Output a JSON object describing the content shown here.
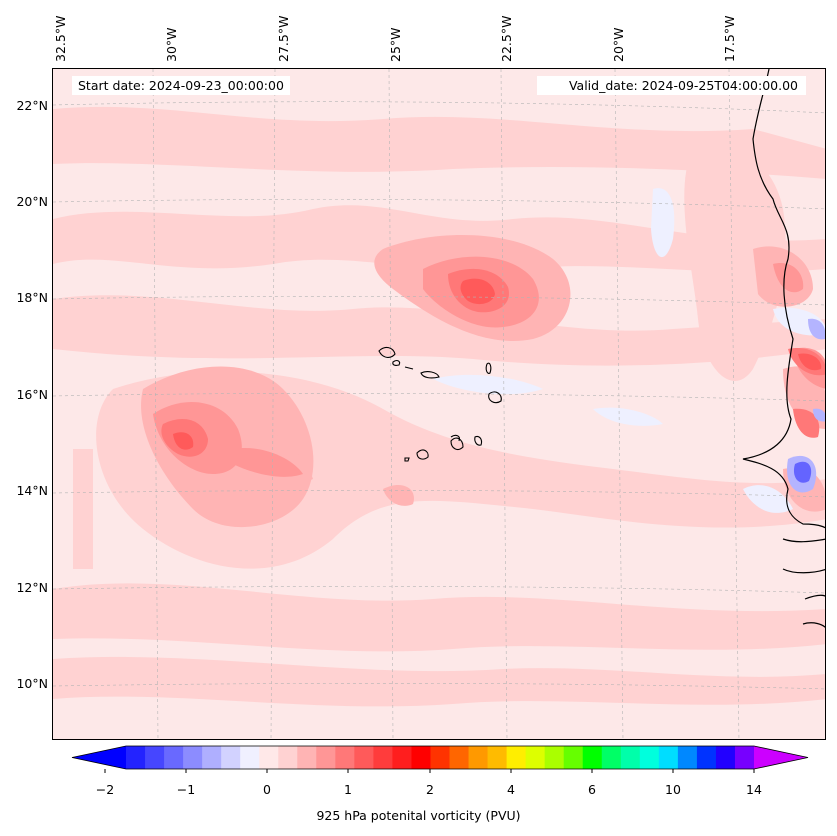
{
  "title": {
    "start": "Start date: 2024-09-23_00:00:00",
    "valid": "Valid_date: 2024-09-25T04:00:00.00"
  },
  "axes": {
    "longitudes": [
      "32.5°W",
      "30°W",
      "27.5°W",
      "25°W",
      "22.5°W",
      "20°W",
      "17.5°W"
    ],
    "latitudes": [
      "22°N",
      "20°N",
      "18°N",
      "16°N",
      "14°N",
      "12°N",
      "10°N"
    ]
  },
  "colorbar": {
    "label": "925 hPa potenital vorticity (PVU)",
    "ticks": [
      "−2",
      "−1",
      "0",
      "1",
      "2",
      "4",
      "6",
      "10",
      "14"
    ],
    "colors": [
      "#0000ff",
      "#2323ff",
      "#4646ff",
      "#6969ff",
      "#8c8cff",
      "#afafff",
      "#d2d2ff",
      "#f0f0ff",
      "#ffe8e8",
      "#ffd2d2",
      "#ffb4b4",
      "#ff9696",
      "#ff7878",
      "#ff5a5a",
      "#ff3c3c",
      "#ff1e1e",
      "#ff0000",
      "#ff3300",
      "#ff6600",
      "#ff9900",
      "#ffbb00",
      "#ffee00",
      "#ddff00",
      "#aaff00",
      "#66ff00",
      "#00ff00",
      "#00ff66",
      "#00ffaa",
      "#00ffdd",
      "#00ddff",
      "#0088ff",
      "#0033ff",
      "#2200ff",
      "#7700ff",
      "#cc00ff"
    ]
  },
  "fields": {
    "background": "#fde8e8",
    "levels": [
      "#ffd2d2",
      "#ffb4b4",
      "#ff9696",
      "#ff7878",
      "#ff5a5a"
    ],
    "negative": [
      "#eef0ff",
      "#b4b4ff",
      "#6464ff"
    ]
  }
}
